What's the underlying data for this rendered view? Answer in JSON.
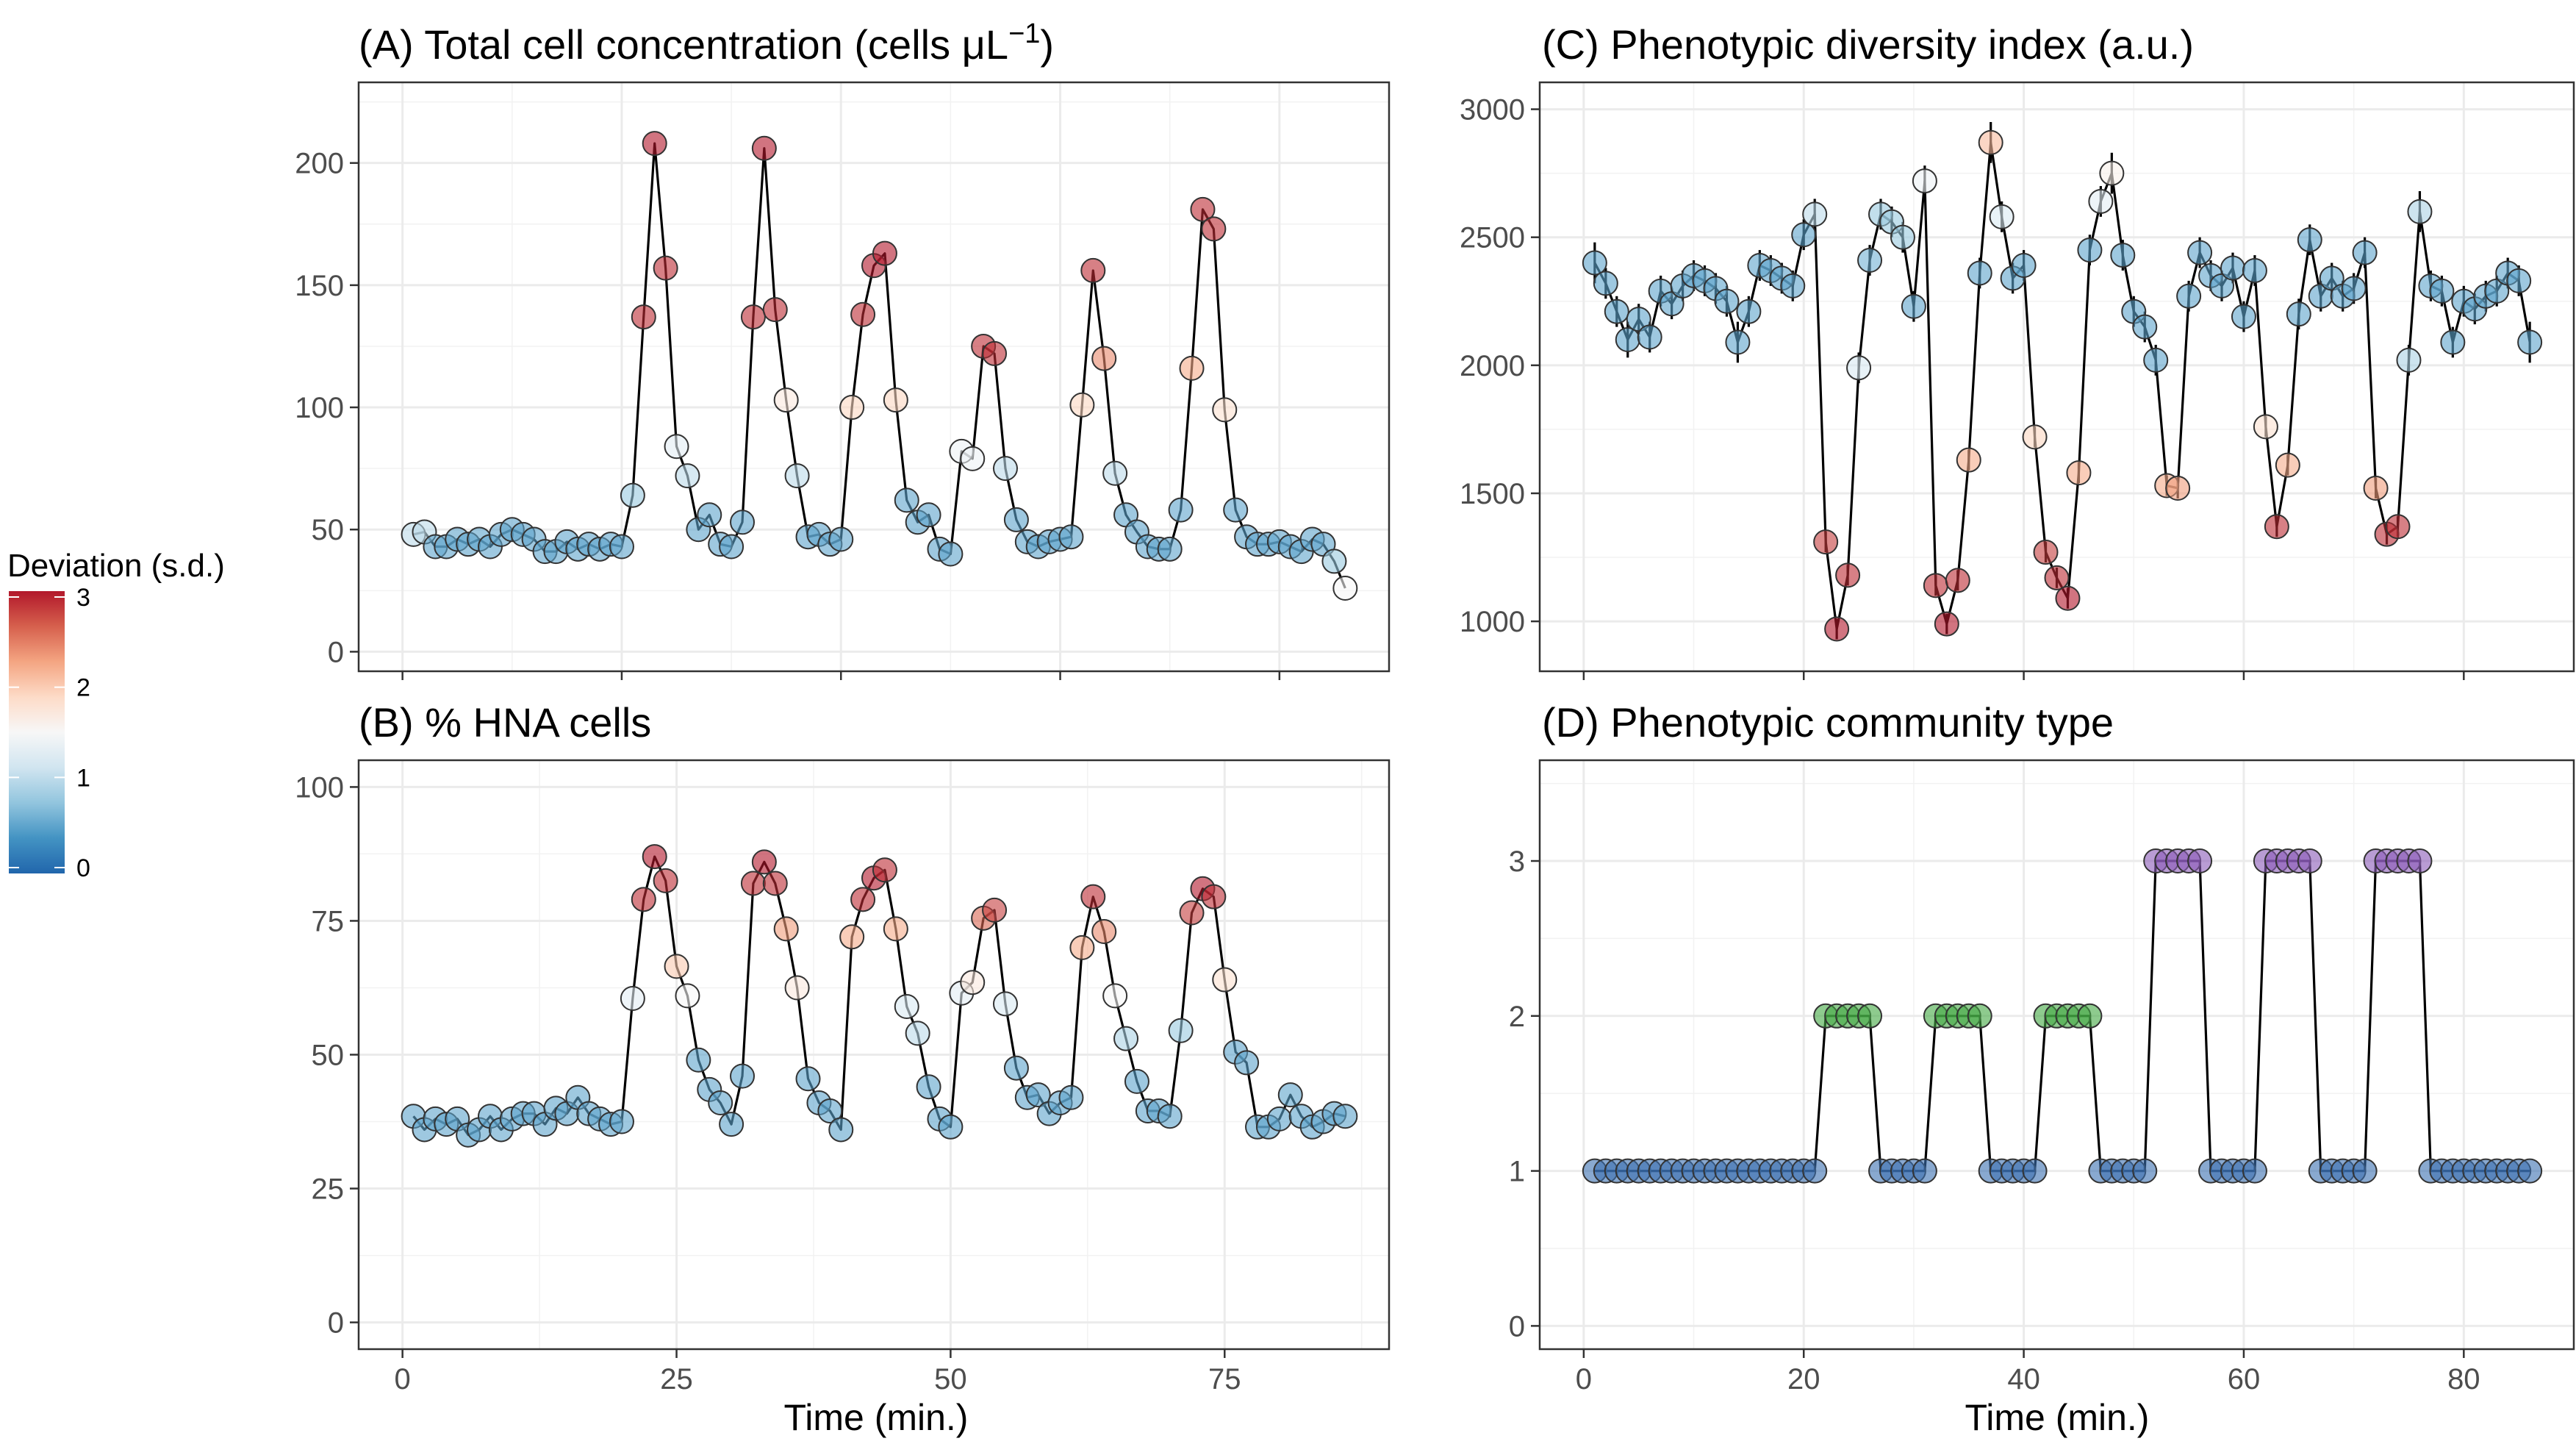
{
  "legend": {
    "title": "Deviation (s.d.)",
    "ticks": [
      "0",
      "1",
      "2",
      "3"
    ],
    "colors": [
      "#2166ac",
      "#4393c3",
      "#92c5de",
      "#d1e5f0",
      "#f7f7f7",
      "#fddbc7",
      "#f4a582",
      "#d6604d",
      "#b2182b"
    ]
  },
  "community_colors": {
    "1": "#3a6fb0",
    "2": "#43a843",
    "3": "#8a5ab8"
  },
  "chart_data": [
    {
      "id": "A",
      "type": "scatter",
      "title": "(A) Total cell concentration (cells μL⁻¹)",
      "title_main": "(A) Total cell concentration (cells μL",
      "title_sup": "−1",
      "title_end": ")",
      "xlabel": "",
      "ylabel": "",
      "xlim": [
        -4,
        90
      ],
      "ylim": [
        -8,
        233
      ],
      "x_ticks": [
        0,
        20,
        40,
        60,
        80
      ],
      "x_tick_labels": [
        "",
        "",
        "",
        "",
        ""
      ],
      "y_ticks": [
        0,
        50,
        100,
        150,
        200
      ],
      "y_tick_labels": [
        "0",
        "50",
        "100",
        "150",
        "200"
      ],
      "grid": true,
      "x": [
        1,
        2,
        3,
        4,
        5,
        6,
        7,
        8,
        9,
        10,
        11,
        12,
        13,
        14,
        15,
        16,
        17,
        18,
        19,
        20,
        21,
        22,
        23,
        24,
        25,
        26,
        27,
        28,
        29,
        30,
        31,
        32,
        33,
        34,
        35,
        36,
        37,
        38,
        39,
        40,
        41,
        42,
        43,
        44,
        45,
        46,
        47,
        48,
        49,
        50,
        51,
        52,
        53,
        54,
        55,
        56,
        57,
        58,
        59,
        60,
        61,
        62,
        63,
        64,
        65,
        66,
        67,
        68,
        69,
        70,
        71,
        72,
        73,
        74,
        75,
        76,
        77,
        78,
        79,
        80,
        81,
        82,
        83,
        84,
        85,
        86
      ],
      "y": [
        48,
        49,
        43,
        43,
        46,
        44,
        46,
        43,
        48,
        50,
        48,
        46,
        41,
        41,
        45,
        42,
        44,
        42,
        44,
        43,
        64,
        137,
        208,
        157,
        84,
        72,
        50,
        56,
        44,
        43,
        53,
        137,
        206,
        140,
        103,
        72,
        47,
        48,
        44,
        46,
        100,
        138,
        158,
        163,
        103,
        62,
        53,
        56,
        42,
        40,
        82,
        79,
        125,
        122,
        75,
        54,
        45,
        43,
        45,
        46,
        47,
        101,
        156,
        120,
        73,
        56,
        49,
        43,
        42,
        42,
        58,
        116,
        181,
        173,
        99,
        58,
        47,
        44,
        44,
        45,
        43,
        41,
        46,
        44,
        37,
        26
      ],
      "deviation": [
        1,
        1,
        0.5,
        0.5,
        0.5,
        0.5,
        0.5,
        0.5,
        0.5,
        0.5,
        0.5,
        0.5,
        0.5,
        0.5,
        0.5,
        0.5,
        0.5,
        0.5,
        0.5,
        0.5,
        0.8,
        2.9,
        3,
        2.9,
        1.3,
        1.0,
        0.5,
        0.5,
        0.5,
        0.5,
        0.5,
        2.9,
        3,
        2.9,
        1.7,
        1.0,
        0.5,
        0.5,
        0.5,
        0.5,
        1.9,
        2.9,
        3,
        3,
        1.9,
        0.5,
        0.5,
        0.5,
        0.5,
        0.5,
        1.4,
        1.4,
        2.9,
        2.9,
        1.0,
        0.5,
        0.5,
        0.5,
        0.5,
        0.5,
        0.5,
        1.9,
        2.9,
        2.4,
        1.0,
        0.5,
        0.5,
        0.5,
        0.5,
        0.5,
        0.5,
        2.2,
        2.9,
        2.9,
        1.8,
        0.5,
        0.5,
        0.5,
        0.5,
        0.5,
        0.5,
        0.5,
        0.5,
        0.5,
        0.8,
        1.5
      ]
    },
    {
      "id": "B",
      "type": "scatter",
      "title": "(B) % HNA cells",
      "xlabel": "Time (min.)",
      "ylabel": "",
      "xlim": [
        -4,
        90
      ],
      "ylim": [
        -5,
        105
      ],
      "x_ticks": [
        0,
        25,
        50,
        75
      ],
      "x_tick_labels": [
        "0",
        "25",
        "50",
        "75"
      ],
      "y_ticks": [
        0,
        25,
        50,
        75,
        100
      ],
      "y_tick_labels": [
        "0",
        "25",
        "50",
        "75",
        "100"
      ],
      "grid": true,
      "x": [
        1,
        2,
        3,
        4,
        5,
        6,
        7,
        8,
        9,
        10,
        11,
        12,
        13,
        14,
        15,
        16,
        17,
        18,
        19,
        20,
        21,
        22,
        23,
        24,
        25,
        26,
        27,
        28,
        29,
        30,
        31,
        32,
        33,
        34,
        35,
        36,
        37,
        38,
        39,
        40,
        41,
        42,
        43,
        44,
        45,
        46,
        47,
        48,
        49,
        50,
        51,
        52,
        53,
        54,
        55,
        56,
        57,
        58,
        59,
        60,
        61,
        62,
        63,
        64,
        65,
        66,
        67,
        68,
        69,
        70,
        71,
        72,
        73,
        74,
        75,
        76,
        77,
        78,
        79,
        80,
        81,
        82,
        83,
        84,
        85,
        86
      ],
      "y": [
        38.5,
        36,
        38,
        37,
        38,
        35,
        36,
        38.5,
        36,
        38,
        39,
        39,
        37,
        40,
        39,
        42,
        39,
        38,
        37,
        37.5,
        60.5,
        79,
        87,
        82.5,
        66.5,
        61,
        49,
        43.5,
        41,
        37,
        46,
        82,
        86,
        82,
        73.5,
        62.5,
        45.5,
        41,
        39.5,
        36,
        72,
        79,
        83,
        84.5,
        73.5,
        59,
        54,
        44,
        38,
        36.5,
        61.5,
        63.5,
        75.5,
        77,
        59.5,
        47.5,
        42,
        42.5,
        39,
        41,
        42,
        70,
        79.5,
        73,
        61,
        53,
        45,
        39.5,
        39.5,
        38.5,
        54.5,
        76.5,
        81,
        79.5,
        64,
        50.5,
        48.5,
        36.5,
        36.5,
        38,
        42.5,
        38.5,
        36.5,
        37.5,
        39,
        38.5
      ],
      "deviation": [
        0.5,
        0.5,
        0.5,
        0.5,
        0.5,
        0.5,
        0.5,
        0.5,
        0.5,
        0.5,
        0.5,
        0.5,
        0.5,
        0.5,
        0.5,
        0.5,
        0.5,
        0.5,
        0.5,
        0.5,
        1.3,
        2.9,
        3,
        2.9,
        2.0,
        1.5,
        0.5,
        0.5,
        0.5,
        0.5,
        0.5,
        2.9,
        3,
        2.9,
        2.3,
        1.7,
        0.5,
        0.5,
        0.5,
        0.5,
        2.2,
        2.9,
        3,
        2.9,
        2.2,
        1.2,
        1.0,
        0.5,
        0.5,
        0.5,
        1.3,
        1.7,
        2.6,
        2.8,
        1.2,
        0.5,
        0.5,
        0.5,
        0.5,
        0.5,
        0.5,
        2.2,
        2.9,
        2.4,
        1.5,
        0.9,
        0.5,
        0.5,
        0.5,
        0.5,
        0.8,
        2.8,
        3,
        2.9,
        1.8,
        0.5,
        0.5,
        0.5,
        0.5,
        0.5,
        0.5,
        0.5,
        0.5,
        0.5,
        0.5,
        0.5
      ]
    },
    {
      "id": "C",
      "type": "scatter",
      "title": "(C) Phenotypic diversity index (a.u.)",
      "xlabel": "",
      "ylabel": "",
      "xlim": [
        -4,
        90
      ],
      "ylim": [
        805,
        3105
      ],
      "x_ticks": [
        0,
        20,
        40,
        60,
        80
      ],
      "x_tick_labels": [
        "",
        "",
        "",
        "",
        ""
      ],
      "y_ticks": [
        1000,
        1500,
        2000,
        2500,
        3000
      ],
      "y_tick_labels": [
        "1000",
        "1500",
        "2000",
        "2500",
        "3000"
      ],
      "grid": true,
      "x": [
        1,
        2,
        3,
        4,
        5,
        6,
        7,
        8,
        9,
        10,
        11,
        12,
        13,
        14,
        15,
        16,
        17,
        18,
        19,
        20,
        21,
        22,
        23,
        24,
        25,
        26,
        27,
        28,
        29,
        30,
        31,
        32,
        33,
        34,
        35,
        36,
        37,
        38,
        39,
        40,
        41,
        42,
        43,
        44,
        45,
        46,
        47,
        48,
        49,
        50,
        51,
        52,
        53,
        54,
        55,
        56,
        57,
        58,
        59,
        60,
        61,
        62,
        63,
        64,
        65,
        66,
        67,
        68,
        69,
        70,
        71,
        72,
        73,
        74,
        75,
        76,
        77,
        78,
        79,
        80,
        81,
        82,
        83,
        84,
        85,
        86
      ],
      "y": [
        2400,
        2320,
        2210,
        2100,
        2180,
        2110,
        2290,
        2240,
        2310,
        2350,
        2330,
        2300,
        2250,
        2090,
        2210,
        2390,
        2370,
        2340,
        2310,
        2510,
        2590,
        1310,
        970,
        1180,
        1990,
        2410,
        2590,
        2560,
        2500,
        2230,
        2720,
        1140,
        990,
        1160,
        1630,
        2360,
        2870,
        2580,
        2340,
        2390,
        1720,
        1270,
        1170,
        1090,
        1580,
        2450,
        2640,
        2750,
        2430,
        2210,
        2150,
        2020,
        1530,
        1520,
        2270,
        2440,
        2350,
        2310,
        2380,
        2190,
        2370,
        1760,
        1370,
        1610,
        2200,
        2490,
        2270,
        2340,
        2270,
        2300,
        2440,
        1520,
        1340,
        1370,
        2020,
        2600,
        2310,
        2290,
        2090,
        2250,
        2220,
        2270,
        2290,
        2360,
        2330,
        2090
      ],
      "err": [
        80,
        60,
        60,
        70,
        60,
        60,
        60,
        60,
        60,
        60,
        60,
        60,
        60,
        80,
        60,
        60,
        60,
        60,
        60,
        60,
        60,
        40,
        40,
        40,
        60,
        60,
        60,
        60,
        60,
        60,
        60,
        40,
        40,
        40,
        40,
        60,
        80,
        60,
        60,
        60,
        40,
        40,
        40,
        40,
        40,
        60,
        60,
        80,
        60,
        60,
        60,
        60,
        40,
        40,
        60,
        60,
        60,
        60,
        60,
        60,
        60,
        40,
        40,
        40,
        60,
        60,
        60,
        60,
        60,
        60,
        60,
        40,
        40,
        40,
        60,
        80,
        60,
        60,
        60,
        60,
        60,
        60,
        60,
        60,
        60,
        80
      ],
      "deviation": [
        0.5,
        0.5,
        0.5,
        0.5,
        0.5,
        0.5,
        0.5,
        0.5,
        0.5,
        0.5,
        0.5,
        0.5,
        0.5,
        0.5,
        0.5,
        0.5,
        0.5,
        0.5,
        0.5,
        0.5,
        1.0,
        2.8,
        3,
        2.9,
        1.2,
        0.6,
        0.8,
        0.8,
        0.8,
        0.5,
        1.4,
        2.9,
        3,
        2.9,
        2.2,
        0.5,
        2.1,
        1.2,
        0.5,
        0.5,
        1.9,
        2.8,
        2.9,
        3,
        2.2,
        0.5,
        1.3,
        1.6,
        0.5,
        0.5,
        0.5,
        0.5,
        2.2,
        2.3,
        0.5,
        0.5,
        0.5,
        0.5,
        0.5,
        0.5,
        0.5,
        1.8,
        2.9,
        2.2,
        0.5,
        0.5,
        0.5,
        0.5,
        0.5,
        0.5,
        0.5,
        2.3,
        2.9,
        2.9,
        0.9,
        0.9,
        0.5,
        0.5,
        0.5,
        0.5,
        0.5,
        0.5,
        0.5,
        0.5,
        0.5,
        0.5
      ]
    },
    {
      "id": "D",
      "type": "scatter",
      "title": "(D) Phenotypic community type",
      "xlabel": "Time (min.)",
      "ylabel": "",
      "xlim": [
        -4,
        90
      ],
      "ylim": [
        -0.15,
        3.65
      ],
      "x_ticks": [
        0,
        20,
        40,
        60,
        80
      ],
      "x_tick_labels": [
        "0",
        "20",
        "40",
        "60",
        "80"
      ],
      "y_ticks": [
        0,
        1,
        2,
        3
      ],
      "y_tick_labels": [
        "0",
        "1",
        "2",
        "3"
      ],
      "grid": true,
      "x": [
        1,
        2,
        3,
        4,
        5,
        6,
        7,
        8,
        9,
        10,
        11,
        12,
        13,
        14,
        15,
        16,
        17,
        18,
        19,
        20,
        21,
        22,
        23,
        24,
        25,
        26,
        27,
        28,
        29,
        30,
        31,
        32,
        33,
        34,
        35,
        36,
        37,
        38,
        39,
        40,
        41,
        42,
        43,
        44,
        45,
        46,
        47,
        48,
        49,
        50,
        51,
        52,
        53,
        54,
        55,
        56,
        57,
        58,
        59,
        60,
        61,
        62,
        63,
        64,
        65,
        66,
        67,
        68,
        69,
        70,
        71,
        72,
        73,
        74,
        75,
        76,
        77,
        78,
        79,
        80,
        81,
        82,
        83,
        84,
        85,
        86
      ],
      "y": [
        1,
        1,
        1,
        1,
        1,
        1,
        1,
        1,
        1,
        1,
        1,
        1,
        1,
        1,
        1,
        1,
        1,
        1,
        1,
        1,
        1,
        2,
        2,
        2,
        2,
        2,
        1,
        1,
        1,
        1,
        1,
        2,
        2,
        2,
        2,
        2,
        1,
        1,
        1,
        1,
        1,
        2,
        2,
        2,
        2,
        2,
        1,
        1,
        1,
        1,
        1,
        3,
        3,
        3,
        3,
        3,
        1,
        1,
        1,
        1,
        1,
        3,
        3,
        3,
        3,
        3,
        1,
        1,
        1,
        1,
        1,
        3,
        3,
        3,
        3,
        3,
        1,
        1,
        1,
        1,
        1,
        1,
        1,
        1,
        1,
        1
      ]
    }
  ]
}
